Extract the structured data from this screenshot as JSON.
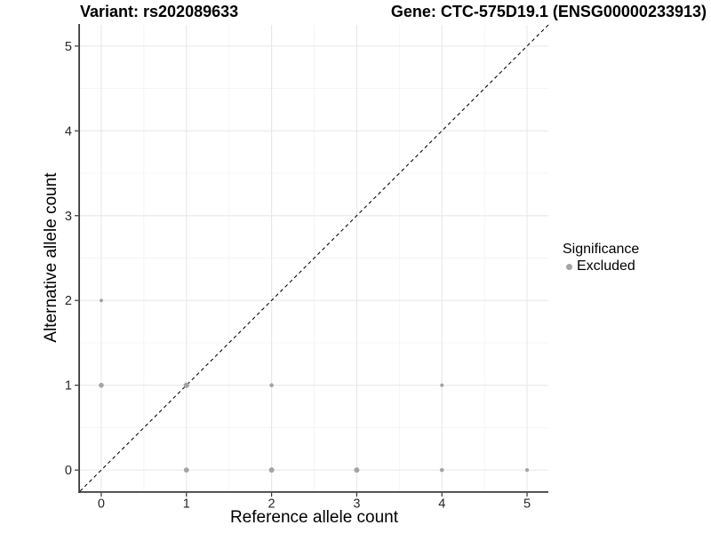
{
  "chart_data": {
    "type": "scatter",
    "title_left": "Variant: rs202089633",
    "title_right": "Gene: CTC-575D19.1 (ENSG00000233913)",
    "xlabel": "Reference allele count",
    "ylabel": "Alternative allele count",
    "xlim": [
      -0.25,
      5.25
    ],
    "ylim": [
      -0.25,
      5.25
    ],
    "xticks": [
      0,
      1,
      2,
      3,
      4,
      5
    ],
    "yticks": [
      0,
      1,
      2,
      3,
      4,
      5
    ],
    "grid": {
      "major": true,
      "minor": true
    },
    "identity_line": {
      "slope": 1,
      "intercept": 0,
      "linetype": "dashed"
    },
    "series": [
      {
        "name": "Excluded",
        "points": [
          {
            "x": 0,
            "y": 1,
            "r": 2.8
          },
          {
            "x": 0,
            "y": 2,
            "r": 2.0
          },
          {
            "x": 1,
            "y": 0,
            "r": 2.9
          },
          {
            "x": 1,
            "y": 1,
            "r": 3.1
          },
          {
            "x": 2,
            "y": 0,
            "r": 3.0
          },
          {
            "x": 2,
            "y": 1,
            "r": 2.3
          },
          {
            "x": 3,
            "y": 0,
            "r": 3.0
          },
          {
            "x": 4,
            "y": 0,
            "r": 2.3
          },
          {
            "x": 4,
            "y": 1,
            "r": 2.0
          },
          {
            "x": 5,
            "y": 0,
            "r": 2.1
          }
        ]
      }
    ],
    "legend": {
      "title": "Significance",
      "position": "right",
      "items": [
        {
          "label": "Excluded",
          "symbol": "point"
        }
      ]
    }
  },
  "colors": {
    "background": "#ffffff",
    "point": "#a4a4a4",
    "grid_major": "#e8e8e8",
    "grid_minor": "#f4f4f4",
    "axis_line": "#3b3b3b",
    "tick": "#333333",
    "tick_label": "#262626",
    "identity_line": "#0a0a0a",
    "title": "#000000"
  }
}
